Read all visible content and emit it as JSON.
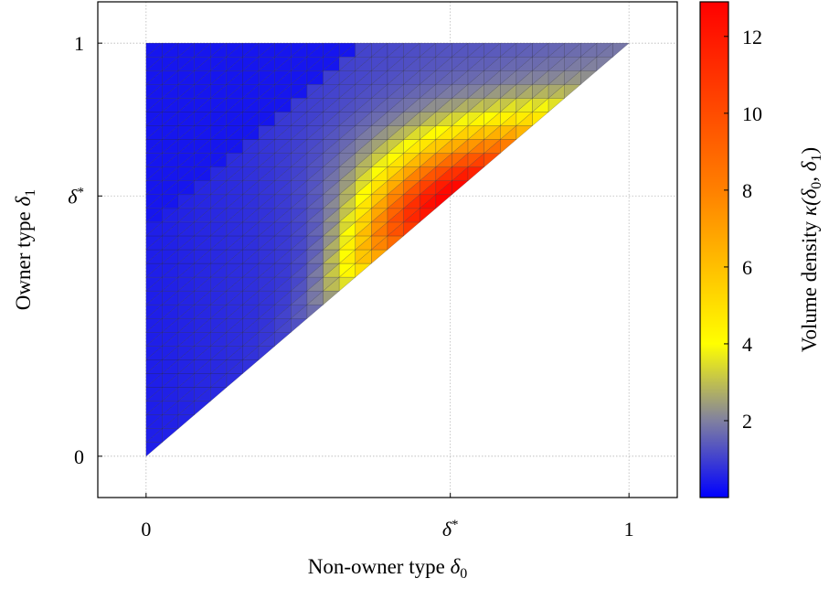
{
  "chart_data": {
    "type": "heatmap",
    "title": "",
    "xlabel": "Non-owner type δ0",
    "ylabel": "Owner type δ1",
    "xlabel_main": "Non-owner type ",
    "xlabel_sym": "δ",
    "xlabel_sub": "0",
    "ylabel_main": "Owner type ",
    "ylabel_sym": "δ",
    "ylabel_sub": "1",
    "colorbar_label": "Volume density κ(δ0, δ1)",
    "colorbar_label_main": "Volume density ",
    "colorbar_label_math": "κ(δ",
    "colorbar_label_sub0": "0",
    "colorbar_label_mid": ", δ",
    "colorbar_label_sub1": "1",
    "colorbar_label_end": ")",
    "domain": "0 ≤ δ0 ≤ δ1 ≤ 1",
    "xlim": [
      -0.1,
      1.1
    ],
    "ylim": [
      -0.1,
      1.1
    ],
    "delta_star": 0.63,
    "x_ticks": [
      {
        "value": 0,
        "label": "0"
      },
      {
        "value": 0.63,
        "label": "δ*"
      },
      {
        "value": 1,
        "label": "1"
      }
    ],
    "y_ticks": [
      {
        "value": 0,
        "label": "0"
      },
      {
        "value": 0.63,
        "label": "δ*"
      },
      {
        "value": 1,
        "label": "1"
      }
    ],
    "grid": true,
    "colorbar": {
      "range": [
        0,
        12.9
      ],
      "ticks": [
        2,
        4,
        6,
        8,
        10,
        12
      ],
      "tick_labels": [
        "2",
        "4",
        "6",
        "8",
        "10",
        "12"
      ],
      "colormap": [
        {
          "value": 0,
          "color": "#0000ff"
        },
        {
          "value": 2,
          "color": "#8080a0"
        },
        {
          "value": 4,
          "color": "#ffff00"
        },
        {
          "value": 8,
          "color": "#ff8000"
        },
        {
          "value": 12.9,
          "color": "#ff0000"
        }
      ]
    },
    "grid_steps": 30,
    "ridge": {
      "description": "density peaks near the diagonal edge around δ0 ≈ δ1 ≈ δ*",
      "peak_value": 12.5,
      "peak_at": [
        0.63,
        0.63
      ]
    }
  }
}
